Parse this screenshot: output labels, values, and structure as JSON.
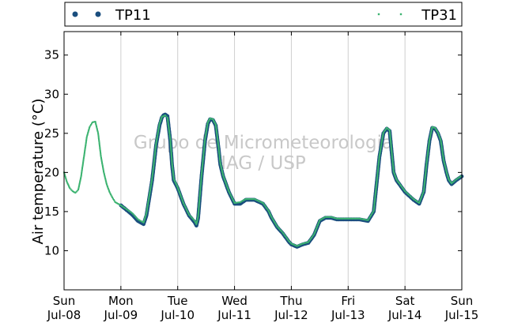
{
  "chart_data": {
    "type": "scatter",
    "ylabel": "Air temperature (°C)",
    "ylim": [
      5,
      38
    ],
    "yticks": [
      10,
      15,
      20,
      25,
      30,
      35
    ],
    "xlim": [
      0,
      7
    ],
    "xticks": [
      {
        "x": 0,
        "day": "Sun",
        "date": "Jul-08"
      },
      {
        "x": 1,
        "day": "Mon",
        "date": "Jul-09"
      },
      {
        "x": 2,
        "day": "Tue",
        "date": "Jul-10"
      },
      {
        "x": 3,
        "day": "Wed",
        "date": "Jul-11"
      },
      {
        "x": 4,
        "day": "Thu",
        "date": "Jul-12"
      },
      {
        "x": 5,
        "day": "Fri",
        "date": "Jul-13"
      },
      {
        "x": 6,
        "day": "Sat",
        "date": "Jul-14"
      },
      {
        "x": 7,
        "day": "Sun",
        "date": "Jul-15"
      }
    ],
    "grid": "vertical",
    "legend_position": "top",
    "watermark": [
      "Grupo de Micrometeorologia",
      "IAG / USP"
    ],
    "series": [
      {
        "name": "TP11",
        "color": "#1a4e7e",
        "marker": "circle",
        "x": [
          1.0,
          1.1,
          1.2,
          1.3,
          1.4,
          1.45,
          1.55,
          1.62,
          1.68,
          1.72,
          1.75,
          1.78,
          1.82,
          1.87,
          1.9,
          1.93,
          2.0,
          2.1,
          2.2,
          2.3,
          2.33,
          2.36,
          2.42,
          2.48,
          2.53,
          2.57,
          2.62,
          2.67,
          2.72,
          2.75,
          2.8,
          2.85,
          2.9,
          3.0,
          3.1,
          3.2,
          3.35,
          3.5,
          3.6,
          3.65,
          3.75,
          3.85,
          3.95,
          4.0,
          4.1,
          4.2,
          4.3,
          4.4,
          4.5,
          4.6,
          4.7,
          4.8,
          5.0,
          5.2,
          5.35,
          5.45,
          5.5,
          5.55,
          5.62,
          5.68,
          5.73,
          5.76,
          5.8,
          5.85,
          5.9,
          6.0,
          6.15,
          6.25,
          6.33,
          6.38,
          6.43,
          6.48,
          6.53,
          6.58,
          6.63,
          6.68,
          6.73,
          6.77,
          6.82,
          6.9,
          7.0
        ],
        "y": [
          15.8,
          15.2,
          14.6,
          13.8,
          13.4,
          14.5,
          19.0,
          23.5,
          26.0,
          27.0,
          27.3,
          27.4,
          27.2,
          24.0,
          21.0,
          19.0,
          18.0,
          16.0,
          14.5,
          13.6,
          13.2,
          14.2,
          19.5,
          24.0,
          26.2,
          26.8,
          26.7,
          26.0,
          23.0,
          21.0,
          19.5,
          18.5,
          17.5,
          16.0,
          16.0,
          16.5,
          16.5,
          16.0,
          15.0,
          14.2,
          13.0,
          12.2,
          11.2,
          10.8,
          10.5,
          10.8,
          11.0,
          12.0,
          13.8,
          14.2,
          14.2,
          14.0,
          14.0,
          14.0,
          13.8,
          15.0,
          18.5,
          22.0,
          25.0,
          25.6,
          25.3,
          23.0,
          20.0,
          19.0,
          18.5,
          17.5,
          16.5,
          16.0,
          17.5,
          21.0,
          24.0,
          25.7,
          25.6,
          25.0,
          24.0,
          21.5,
          20.0,
          19.0,
          18.5,
          19.0,
          19.5
        ]
      },
      {
        "name": "TP31",
        "color": "#3cb371",
        "marker": "point",
        "x": [
          0.0,
          0.05,
          0.1,
          0.15,
          0.2,
          0.25,
          0.3,
          0.35,
          0.4,
          0.45,
          0.5,
          0.55,
          0.6,
          0.65,
          0.7,
          0.75,
          0.8,
          0.85,
          0.9,
          0.95,
          1.0,
          1.1,
          1.2,
          1.3,
          1.4,
          1.45,
          1.55,
          1.62,
          1.68,
          1.72,
          1.75,
          1.78,
          1.82,
          1.87,
          1.9,
          1.93,
          2.0,
          2.1,
          2.2,
          2.3,
          2.33,
          2.36,
          2.42,
          2.48,
          2.53,
          2.57,
          2.62,
          2.67,
          2.72,
          2.75,
          2.8,
          2.85,
          2.9,
          3.0,
          3.1,
          3.2,
          3.35,
          3.5,
          3.6,
          3.65,
          3.75,
          3.85,
          3.95,
          4.0,
          4.1,
          4.2,
          4.3,
          4.4,
          4.5,
          4.6,
          4.7,
          4.8,
          5.0,
          5.2,
          5.35,
          5.45,
          5.5,
          5.55,
          5.62,
          5.68,
          5.73,
          5.76,
          5.8,
          5.85,
          5.9,
          6.0,
          6.15,
          6.25,
          6.33,
          6.38,
          6.43,
          6.48,
          6.53,
          6.58,
          6.63,
          6.68,
          6.73,
          6.77,
          6.82,
          6.9,
          7.0
        ],
        "y": [
          20.0,
          18.8,
          18.0,
          17.6,
          17.4,
          17.8,
          19.5,
          22.0,
          24.5,
          25.8,
          26.4,
          26.5,
          25.0,
          22.0,
          20.0,
          18.5,
          17.5,
          16.8,
          16.2,
          16.0,
          15.8,
          15.3,
          14.8,
          14.0,
          13.6,
          14.8,
          19.2,
          23.7,
          26.2,
          27.1,
          27.2,
          27.3,
          27.0,
          24.2,
          21.2,
          19.2,
          18.1,
          16.1,
          14.6,
          13.8,
          13.4,
          14.4,
          19.7,
          24.2,
          26.4,
          26.9,
          26.8,
          26.1,
          23.2,
          21.2,
          19.6,
          18.6,
          17.6,
          16.1,
          16.2,
          16.6,
          16.6,
          16.1,
          15.1,
          14.3,
          13.1,
          12.3,
          11.3,
          10.9,
          10.6,
          10.9,
          11.1,
          12.1,
          13.9,
          14.3,
          14.3,
          14.1,
          14.1,
          14.1,
          13.9,
          15.1,
          18.6,
          22.1,
          25.1,
          25.7,
          25.4,
          23.1,
          20.1,
          19.1,
          18.6,
          17.6,
          16.6,
          16.1,
          17.6,
          21.1,
          24.1,
          25.8,
          25.7,
          25.1,
          24.1,
          21.6,
          20.1,
          19.1,
          18.6,
          19.1,
          19.6
        ]
      }
    ]
  }
}
